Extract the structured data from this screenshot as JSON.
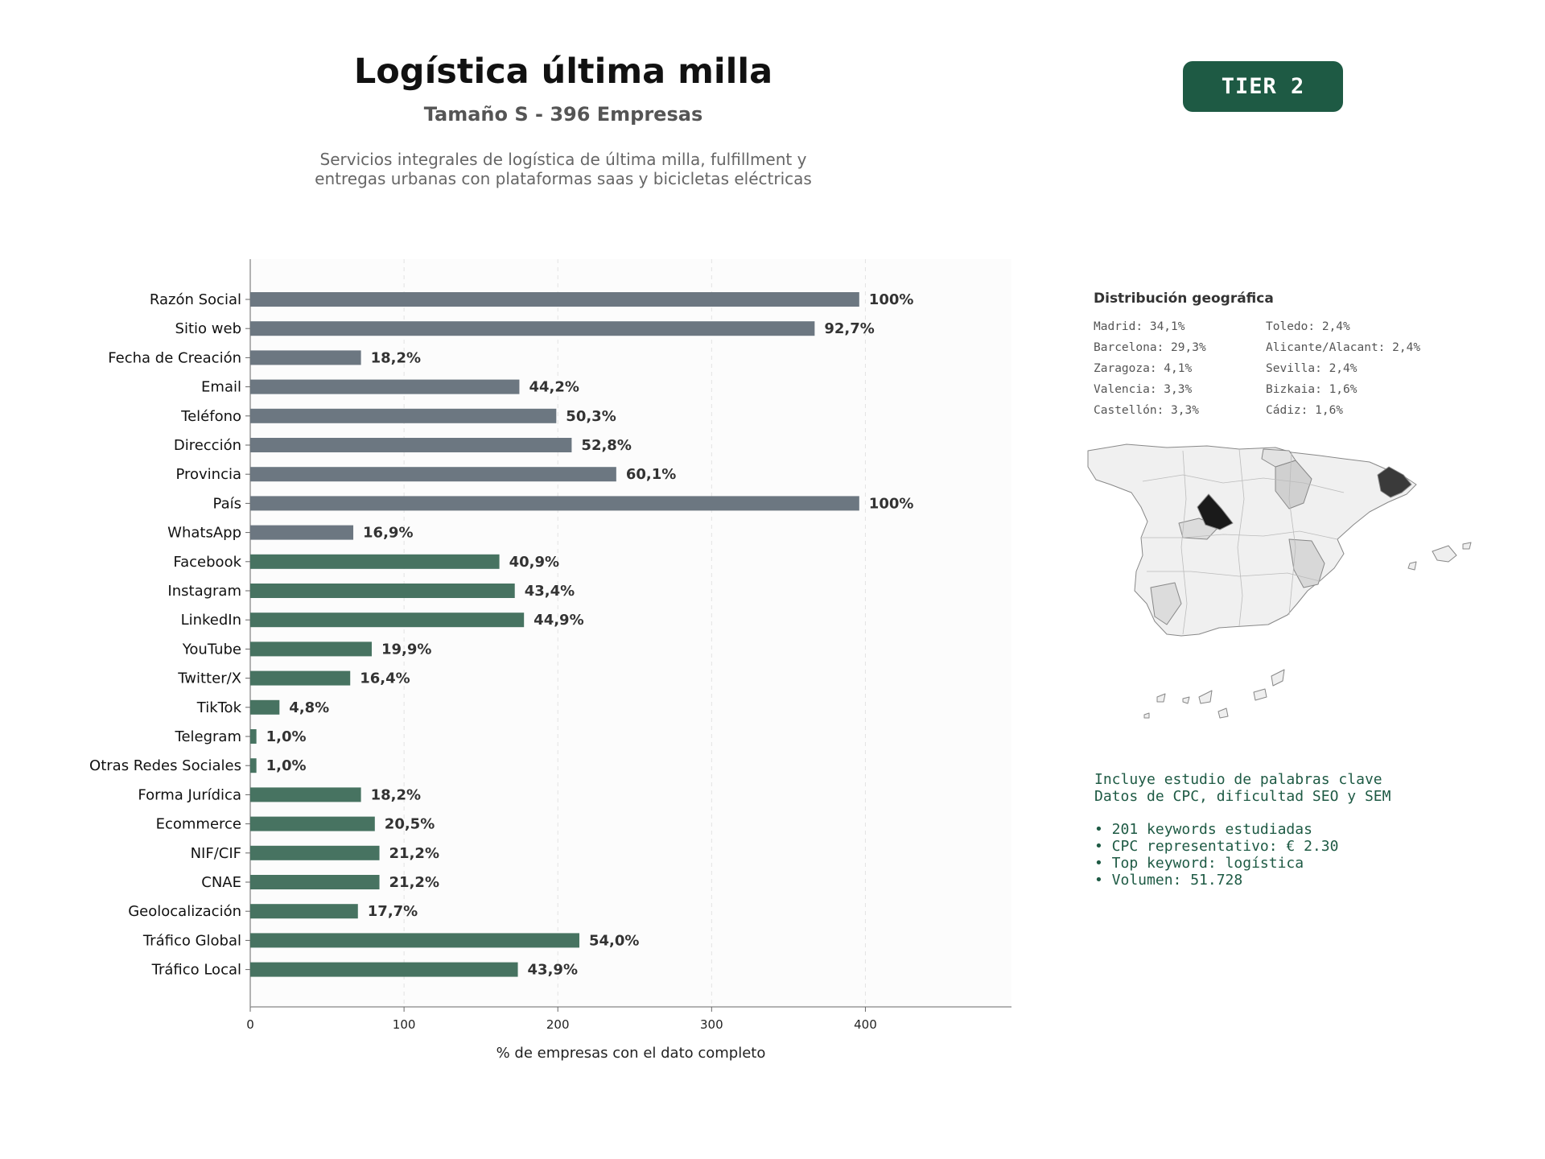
{
  "header": {
    "title": "Logística última milla",
    "subtitle": "Tamaño S - 396 Empresas",
    "description_lines": [
      "Servicios integrales de logística de última milla, fulfillment y",
      "entregas urbanas con plataformas saas y bicicletas eléctricas"
    ],
    "tier": "TIER 2"
  },
  "chart_data": {
    "type": "bar",
    "orientation": "horizontal",
    "xlabel": "% de empresas con el dato completo",
    "ylabel": "",
    "xlim": [
      0,
      495
    ],
    "xticks": [
      0,
      100,
      200,
      300,
      400
    ],
    "grid": "vertical dashed",
    "categories": [
      "Razón Social",
      "Sitio web",
      "Fecha de Creación",
      "Email",
      "Teléfono",
      "Dirección",
      "Provincia",
      "País",
      "WhatsApp",
      "Facebook",
      "Instagram",
      "LinkedIn",
      "YouTube",
      "Twitter/X",
      "TikTok",
      "Telegram",
      "Otras Redes Sociales",
      "Forma Jurídica",
      "Ecommerce",
      "NIF/CIF",
      "CNAE",
      "Geolocalización",
      "Tráfico Global",
      "Tráfico Local"
    ],
    "values": [
      396,
      367,
      72,
      175,
      199,
      209,
      238,
      396,
      67,
      162,
      172,
      178,
      79,
      65,
      19,
      4,
      4,
      72,
      81,
      84,
      84,
      70,
      214,
      174
    ],
    "labels": [
      "100%",
      "92,7%",
      "18,2%",
      "44,2%",
      "50,3%",
      "52,8%",
      "60,1%",
      "100%",
      "16,9%",
      "40,9%",
      "43,4%",
      "44,9%",
      "19,9%",
      "16,4%",
      "4,8%",
      "1,0%",
      "1,0%",
      "18,2%",
      "20,5%",
      "21,2%",
      "21,2%",
      "17,7%",
      "54,0%",
      "43,9%"
    ],
    "groups": [
      "basic",
      "basic",
      "basic",
      "basic",
      "basic",
      "basic",
      "basic",
      "basic",
      "basic",
      "social",
      "social",
      "social",
      "social",
      "social",
      "social",
      "social",
      "social",
      "social",
      "social",
      "social",
      "social",
      "social",
      "social",
      "social"
    ],
    "colors": {
      "basic": "#6c7781",
      "social": "#477361"
    }
  },
  "geo": {
    "title": "Distribución geográfica",
    "items": [
      "Madrid: 34,1%",
      "Toledo: 2,4%",
      "Barcelona: 29,3%",
      "Alicante/Alacant: 2,4%",
      "Zaragoza: 4,1%",
      "Sevilla: 2,4%",
      "Valencia: 3,3%",
      "Bizkaia: 1,6%",
      "Castellón: 3,3%",
      "Cádiz: 1,6%"
    ]
  },
  "keywords": {
    "intro_1": "Incluye estudio de palabras clave",
    "intro_2": "Datos de CPC, dificultad SEO y SEM",
    "bullets": [
      "• 201 keywords estudiadas",
      "• CPC representativo: € 2.30",
      "• Top keyword: logística",
      "• Volumen: 51.728"
    ]
  }
}
